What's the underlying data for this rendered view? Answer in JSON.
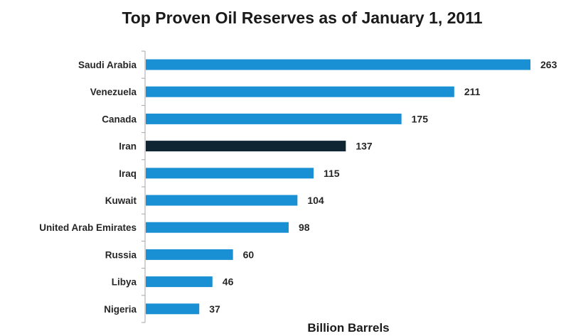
{
  "chart_data": {
    "type": "bar",
    "orientation": "horizontal",
    "title": "Top Proven Oil Reserves as of January 1, 2011",
    "xlabel": "Billion Barrels",
    "ylabel": "",
    "categories": [
      "Saudi Arabia",
      "Venezuela",
      "Canada",
      "Iran",
      "Iraq",
      "Kuwait",
      "United Arab Emirates",
      "Russia",
      "Libya",
      "Nigeria"
    ],
    "values": [
      263,
      211,
      175,
      137,
      115,
      104,
      98,
      60,
      46,
      37
    ],
    "value_labels": [
      "263",
      "211",
      "175",
      "137",
      "115",
      "104",
      "98",
      "60",
      "46",
      "37"
    ],
    "xlim": [
      0,
      263
    ],
    "grid": false,
    "legend": "none",
    "highlight_category": "Iran",
    "colors": {
      "bar": "#1a90d4",
      "highlight": "#0f2533",
      "axis": "#a6a6a6",
      "text": "#262626"
    }
  }
}
